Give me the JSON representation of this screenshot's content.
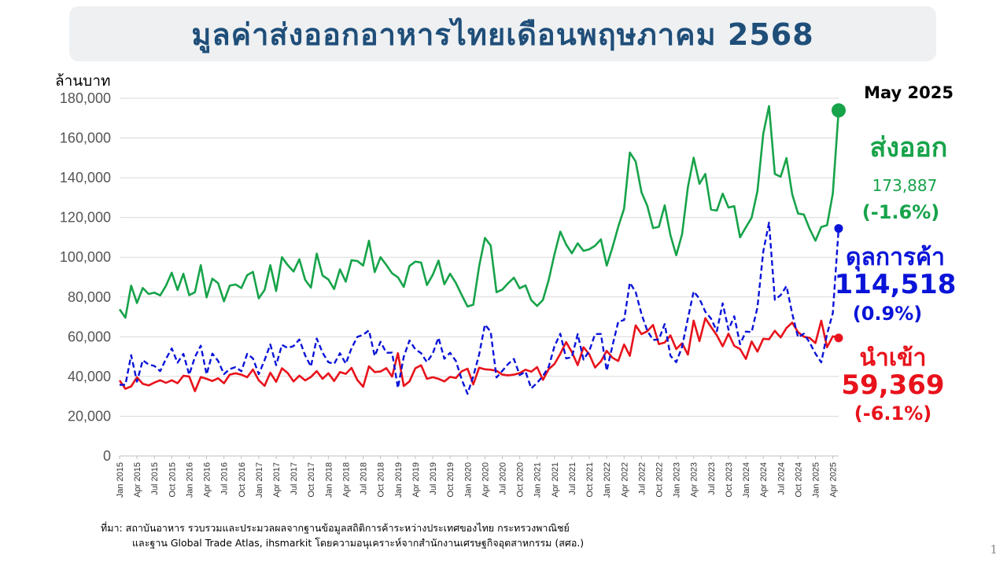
{
  "title": "มูลค่าส่งออกอาหารไทยเดือนพฤษภาคม 2568",
  "unit_label": "ล้านบาท",
  "month_label": "May 2025",
  "export": {
    "label": "ส่งออก",
    "value": "173,887",
    "change": "(-1.6%)",
    "color": "#17a34a"
  },
  "balance": {
    "label": "ดุลการค้า",
    "value": "114,518",
    "change": "(0.9%)",
    "color": "#0a14d8"
  },
  "import": {
    "label": "นำเข้า",
    "value": "59,369",
    "change": "(-6.1%)",
    "color": "#e8121b"
  },
  "source_line1": "ที่มา: สถาบันอาหาร รวบรวมและประมวลผลจากฐานข้อมูลสถิติการค้าระหว่างประเทศของไทย กระทรวงพาณิชย์",
  "source_line2": "และฐาน Global Trade Atlas, ihsmarkit โดยความอนุเคราะห์จากสำนักงานเศรษฐกิจอุตสาหกรรม (สศอ.)",
  "page_number": "1",
  "chart_data": {
    "type": "line",
    "ylim": [
      0,
      180000
    ],
    "yticks": [
      0,
      20000,
      40000,
      60000,
      80000,
      100000,
      120000,
      140000,
      160000,
      180000
    ],
    "ytick_labels": [
      "0",
      "20,000",
      "40,000",
      "60,000",
      "80,000",
      "100,000",
      "120,000",
      "140,000",
      "160,000",
      "180,000"
    ],
    "xtick_labels": [
      "Jan 2015",
      "Apr 2015",
      "Jul 2015",
      "Oct 2015",
      "Jan 2016",
      "Apr 2016",
      "Jul 2016",
      "Oct 2016",
      "Jan 2017",
      "Apr 2017",
      "Jul 2017",
      "Oct 2017",
      "Jan 2018",
      "Apr 2018",
      "Jul 2018",
      "Oct 2018",
      "Jan 2019",
      "Apr 2019",
      "Jul 2019",
      "Oct 2019",
      "Jan 2020",
      "Apr 2020",
      "Jul 2020",
      "Oct 2020",
      "Jan 2021",
      "Apr 2021",
      "Jul 2021",
      "Oct 2021",
      "Jan 2022",
      "Apr 2022",
      "Jul 2022",
      "Oct 2022",
      "Jan 2023",
      "Apr 2023",
      "Jul 2023",
      "Oct 2023",
      "Jan 2024",
      "Apr 2024",
      "Jul 2024",
      "Oct 2024",
      "Jan 2025",
      "Apr 2025"
    ],
    "x_start": "Jan 2015",
    "x_end": "May 2025",
    "grid": true,
    "series": [
      {
        "name": "ส่งออก",
        "color": "#17a34a",
        "style": "solid",
        "values": [
          73800,
          69600,
          85700,
          77000,
          84500,
          81500,
          82200,
          80800,
          85700,
          92200,
          83500,
          91700,
          80900,
          82400,
          96000,
          79800,
          89200,
          86900,
          77800,
          85700,
          86300,
          84500,
          91000,
          92600,
          79300,
          83500,
          96000,
          83000,
          100000,
          96000,
          92800,
          99000,
          88600,
          84700,
          101800,
          90800,
          88800,
          84000,
          93900,
          87700,
          98500,
          98100,
          95800,
          108300,
          92500,
          100000,
          96100,
          91900,
          89900,
          85100,
          95600,
          97800,
          97300,
          86000,
          91100,
          98300,
          86400,
          91700,
          87000,
          81000,
          75200,
          76100,
          95400,
          109700,
          105900,
          82400,
          83700,
          86900,
          89700,
          84400,
          85800,
          78400,
          75500,
          78500,
          88600,
          101500,
          112900,
          106400,
          102000,
          107000,
          103200,
          104000,
          105800,
          109000,
          95800,
          104900,
          115400,
          124500,
          152700,
          148200,
          132700,
          125800,
          114700,
          115300,
          126100,
          111100,
          101000,
          111600,
          135300,
          150100,
          136900,
          141900,
          124000,
          123500,
          132000,
          125000,
          125700,
          110000,
          115100,
          119900,
          133300,
          162100,
          176100,
          141900,
          140500,
          149900,
          131600,
          122000,
          121500,
          114300,
          108300,
          115200,
          116100,
          132100,
          173900
        ]
      },
      {
        "name": "นำเข้า",
        "color": "#e8121b",
        "style": "solid",
        "values": [
          38000,
          33800,
          35000,
          39600,
          36300,
          35500,
          36900,
          38100,
          36800,
          38100,
          36600,
          40300,
          40000,
          32600,
          39700,
          38800,
          37700,
          39100,
          36600,
          40900,
          41600,
          40900,
          39600,
          43500,
          38100,
          35300,
          41900,
          37300,
          44100,
          41700,
          37500,
          40400,
          38000,
          39700,
          42700,
          38800,
          41600,
          37700,
          42200,
          41300,
          44300,
          38200,
          34800,
          45100,
          42200,
          42500,
          44200,
          39900,
          51700,
          35200,
          37500,
          44100,
          45600,
          38800,
          39600,
          38800,
          37500,
          39800,
          39200,
          42600,
          43900,
          36000,
          44400,
          43600,
          43400,
          42900,
          40900,
          40600,
          40900,
          41700,
          43400,
          42400,
          44700,
          38300,
          43700,
          46300,
          51400,
          57300,
          52300,
          45700,
          54700,
          51200,
          44500,
          47600,
          52900,
          49400,
          47800,
          56100,
          50400,
          65700,
          61300,
          62800,
          65900,
          56300,
          57100,
          60700,
          53800,
          56700,
          51000,
          68100,
          57800,
          69300,
          64900,
          60700,
          55200,
          61500,
          55400,
          53800,
          48800,
          57600,
          52500,
          59000,
          58700,
          63000,
          59600,
          64400,
          67100,
          62300,
          60000,
          59400,
          56800,
          68100,
          54700,
          60200,
          59400
        ]
      },
      {
        "name": "ดุลการค้า",
        "color": "#0a14d8",
        "style": "dashed",
        "values": [
          35800,
          35800,
          50700,
          37400,
          48200,
          46000,
          45300,
          42700,
          48900,
          54100,
          46900,
          51400,
          40900,
          49800,
          55500,
          41000,
          51500,
          47800,
          41200,
          43700,
          44700,
          42600,
          51400,
          49100,
          41200,
          48200,
          56100,
          45700,
          55900,
          54300,
          55300,
          58600,
          50600,
          45000,
          59100,
          52000,
          47200,
          46300,
          51700,
          46400,
          54200,
          59900,
          61000,
          63200,
          50300,
          57500,
          51900,
          52000,
          34200,
          49900,
          58100,
          53700,
          51700,
          47200,
          51500,
          59500,
          48900,
          51900,
          47800,
          38400,
          31300,
          40100,
          51000,
          66100,
          62500,
          39500,
          42800,
          46300,
          48800,
          40700,
          42400,
          34000,
          36800,
          40200,
          44900,
          55200,
          61500,
          49100,
          49700,
          61300,
          48500,
          52800,
          61300,
          61400,
          42900,
          55500,
          67600,
          68400,
          87200,
          82500,
          71400,
          63000,
          58400,
          58600,
          66400,
          50400,
          47200,
          54900,
          69200,
          82800,
          79100,
          72600,
          69100,
          62800,
          76800,
          63500,
          70300,
          56200,
          62600,
          62300,
          74800,
          102900,
          117400,
          78600,
          80900,
          85500,
          71600,
          59700,
          61500,
          57100,
          51500,
          47100,
          61400,
          71900,
          114500
        ]
      }
    ]
  }
}
